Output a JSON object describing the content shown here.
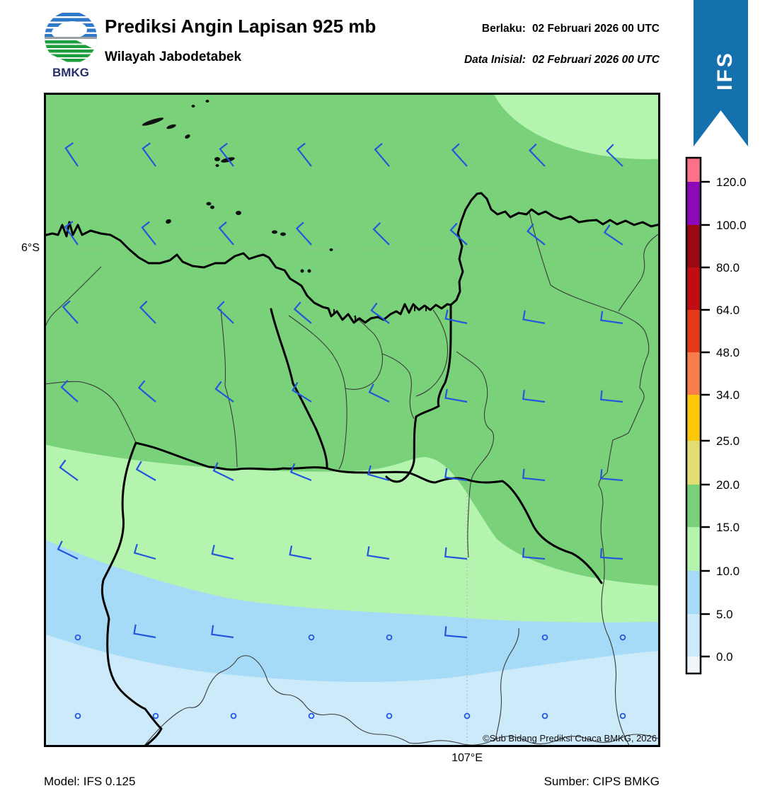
{
  "header": {
    "logo_text": "BMKG",
    "title": "Prediksi Angin Lapisan 925 mb",
    "subtitle": "Wilayah Jabodetabek",
    "valid_label": "Berlaku:",
    "valid_value": "02 Februari 2026 00 UTC",
    "init_label": "Data Inisial:",
    "init_value": "02 Februari 2026 00 UTC",
    "ribbon_label": "IFS",
    "ribbon_color": "#1571ad"
  },
  "axes": {
    "lat_label": "6°S",
    "lon_label": "107°E"
  },
  "footer": {
    "model": "Model: IFS 0.125",
    "source": "Sumber: CIPS BMKG"
  },
  "map": {
    "copyright": "©Sub Bidang Prediksi Cuaca BMKG, 2026",
    "region_colors": {
      "wind_15_20": "#79d279",
      "wind_10_15": "#b4f4ae",
      "wind_5_10": "#a6dbf7",
      "wind_0_5": "#cdeafb"
    }
  },
  "colorbar": {
    "unit_levels": [
      "120.0",
      "100.0",
      "80.0",
      "64.0",
      "48.0",
      "34.0",
      "25.0",
      "20.0",
      "15.0",
      "10.0",
      "5.0",
      "0.0"
    ],
    "colors": [
      "#fb7189",
      "#8d08b8",
      "#980b10",
      "#c00c13",
      "#e23a1a",
      "#f87c4c",
      "#fcc60a",
      "#e0dd72",
      "#79d279",
      "#b4f4ae",
      "#a6dbf7",
      "#cdeafb",
      "#eef6fc"
    ],
    "segment_heights": [
      34,
      61,
      60,
      60,
      60,
      60,
      65,
      62,
      60,
      62,
      61,
      60,
      24
    ]
  },
  "chart_data": {
    "type": "wind_barb_map",
    "title": "Prediksi Angin Lapisan 925 mb",
    "region": "Wilayah Jabodetabek",
    "grid_x_knots": [
      110,
      220,
      330,
      440,
      550,
      660,
      770,
      880
    ],
    "grid_y_knots": [
      235,
      346,
      457,
      568,
      679,
      790,
      901,
      1012
    ],
    "barb_staff_angles_deg": [
      [
        56,
        54,
        52,
        52,
        50,
        48,
        46,
        44
      ],
      [
        55,
        52,
        50,
        48,
        45,
        42,
        38,
        34
      ],
      [
        48,
        46,
        44,
        40,
        36,
        12,
        10,
        8
      ],
      [
        42,
        40,
        36,
        32,
        26,
        10,
        7,
        6
      ],
      [
        36,
        30,
        26,
        22,
        16,
        8,
        6,
        5
      ],
      [
        26,
        16,
        13,
        11,
        9,
        6,
        5,
        4
      ],
      [
        null,
        10,
        8,
        null,
        null,
        5,
        null,
        null
      ],
      [
        null,
        null,
        null,
        null,
        null,
        null,
        null,
        null
      ]
    ],
    "calm_marker": "circle",
    "barb_color": "#2456dd",
    "staff_len": 31,
    "tick_len": 13,
    "islands": [
      [
        273,
        150,
        2.5,
        2,
        0
      ],
      [
        293,
        143,
        2.5,
        2,
        0
      ],
      [
        216,
        172,
        16,
        3,
        -18
      ],
      [
        242,
        179,
        7,
        2.5,
        -18
      ],
      [
        265,
        193,
        4,
        2.5,
        -30
      ],
      [
        307,
        225,
        4,
        3,
        0
      ],
      [
        322,
        226,
        10,
        3,
        -14
      ],
      [
        307,
        234,
        2.5,
        2,
        0
      ],
      [
        295,
        288,
        3.5,
        2.5,
        0
      ],
      [
        300,
        293,
        3,
        2.5,
        0
      ],
      [
        337,
        301,
        4,
        3,
        0
      ],
      [
        238,
        313,
        4,
        3,
        -20
      ],
      [
        388,
        328,
        4,
        2.5,
        0
      ],
      [
        400,
        331,
        4,
        2.5,
        0
      ],
      [
        468,
        353,
        2.5,
        2,
        0
      ],
      [
        427,
        383,
        2.5,
        2.5,
        0
      ],
      [
        437,
        383,
        2.5,
        2.5,
        0
      ]
    ]
  }
}
